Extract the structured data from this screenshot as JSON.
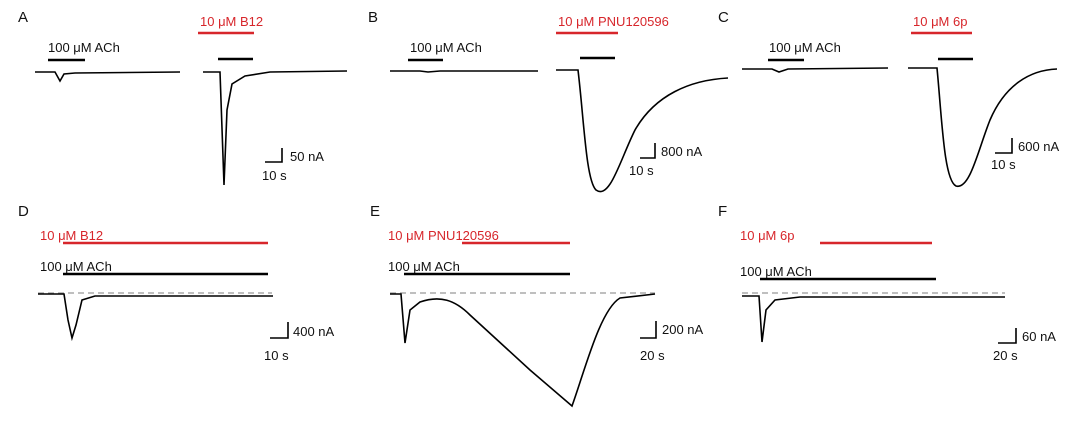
{
  "panels": [
    {
      "letter": "A",
      "agonist": "100 μM ACh",
      "modulator": "10 μM B12",
      "scale_current": "50 nA",
      "scale_time": "10 s"
    },
    {
      "letter": "B",
      "agonist": "100 μM ACh",
      "modulator": "10 μM PNU120596",
      "scale_current": "800 nA",
      "scale_time": "10 s"
    },
    {
      "letter": "C",
      "agonist": "100 μM ACh",
      "modulator": "10 μM 6p",
      "scale_current": "600 nA",
      "scale_time": "10 s"
    },
    {
      "letter": "D",
      "agonist": "100 μM ACh",
      "modulator": "10 μM B12",
      "scale_current": "400 nA",
      "scale_time": "10 s"
    },
    {
      "letter": "E",
      "agonist": "100 μM ACh",
      "modulator": "10 μM PNU120596",
      "scale_current": "200 nA",
      "scale_time": "20 s"
    },
    {
      "letter": "F",
      "agonist": "100 μM ACh",
      "modulator": "10 μM 6p",
      "scale_current": "60 nA",
      "scale_time": "20 s"
    }
  ]
}
